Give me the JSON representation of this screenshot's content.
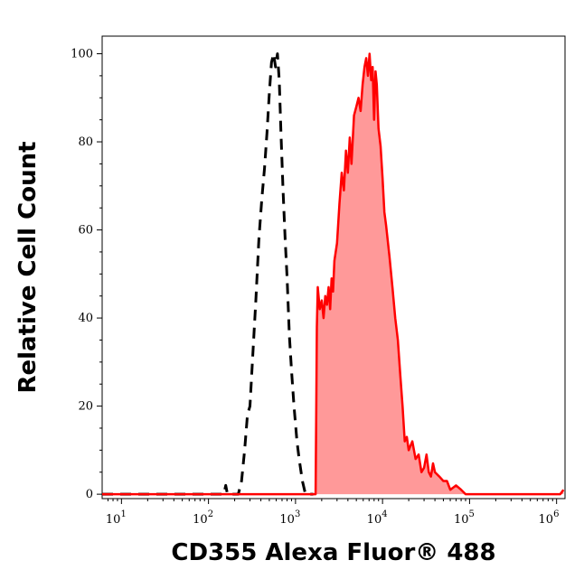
{
  "chart_data": {
    "type": "area",
    "xlabel": "CD355 Alexa Fluor® 488",
    "ylabel": "Relative Cell Count",
    "x_scale": "log",
    "xlim": [
      6,
      1250000
    ],
    "ylim": [
      -1,
      104
    ],
    "x_ticks": [
      {
        "base": "10",
        "exp": "1",
        "value": 10
      },
      {
        "base": "10",
        "exp": "2",
        "value": 100
      },
      {
        "base": "10",
        "exp": "3",
        "value": 1000
      },
      {
        "base": "10",
        "exp": "4",
        "value": 10000
      },
      {
        "base": "10",
        "exp": "5",
        "value": 100000
      },
      {
        "base": "10",
        "exp": "6",
        "value": 1000000
      }
    ],
    "y_ticks": [
      "0",
      "20",
      "40",
      "60",
      "80",
      "100"
    ],
    "y_tick_values": [
      0,
      20,
      40,
      60,
      80,
      100
    ],
    "series": [
      {
        "style": "dashed-outline",
        "color": "#000000",
        "points": [
          [
            6,
            0
          ],
          [
            150,
            0
          ],
          [
            158,
            2
          ],
          [
            165,
            0
          ],
          [
            220,
            0
          ],
          [
            240,
            3
          ],
          [
            260,
            10
          ],
          [
            280,
            18
          ],
          [
            300,
            20
          ],
          [
            320,
            30
          ],
          [
            350,
            44
          ],
          [
            380,
            58
          ],
          [
            410,
            67
          ],
          [
            440,
            74
          ],
          [
            470,
            82
          ],
          [
            500,
            91
          ],
          [
            530,
            98
          ],
          [
            560,
            100
          ],
          [
            590,
            97
          ],
          [
            620,
            100
          ],
          [
            650,
            94
          ],
          [
            680,
            82
          ],
          [
            720,
            69
          ],
          [
            760,
            58
          ],
          [
            800,
            49
          ],
          [
            850,
            36
          ],
          [
            900,
            28
          ],
          [
            960,
            20
          ],
          [
            1040,
            12
          ],
          [
            1100,
            8
          ],
          [
            1200,
            3
          ],
          [
            1300,
            0
          ],
          [
            1400,
            0
          ],
          [
            1500,
            0
          ],
          [
            1600,
            0
          ]
        ]
      },
      {
        "style": "filled",
        "color": "#ff0000",
        "fill": "#ff9999",
        "points": [
          [
            6,
            0
          ],
          [
            1650,
            0
          ],
          [
            1700,
            0
          ],
          [
            1730,
            18
          ],
          [
            1760,
            38
          ],
          [
            1800,
            47
          ],
          [
            1900,
            42
          ],
          [
            2000,
            44
          ],
          [
            2100,
            40
          ],
          [
            2200,
            45
          ],
          [
            2300,
            43
          ],
          [
            2400,
            47
          ],
          [
            2500,
            42
          ],
          [
            2600,
            49
          ],
          [
            2700,
            46
          ],
          [
            2800,
            53
          ],
          [
            3000,
            57
          ],
          [
            3200,
            66
          ],
          [
            3400,
            73
          ],
          [
            3600,
            69
          ],
          [
            3800,
            78
          ],
          [
            4000,
            73
          ],
          [
            4200,
            81
          ],
          [
            4400,
            75
          ],
          [
            4700,
            86
          ],
          [
            5000,
            88
          ],
          [
            5300,
            90
          ],
          [
            5600,
            87
          ],
          [
            5900,
            93
          ],
          [
            6200,
            97
          ],
          [
            6500,
            99
          ],
          [
            6800,
            95
          ],
          [
            7100,
            100
          ],
          [
            7400,
            94
          ],
          [
            7700,
            97
          ],
          [
            8000,
            85
          ],
          [
            8300,
            96
          ],
          [
            8600,
            93
          ],
          [
            9000,
            83
          ],
          [
            9500,
            79
          ],
          [
            10000,
            72
          ],
          [
            10500,
            64
          ],
          [
            11000,
            61
          ],
          [
            12000,
            54
          ],
          [
            13000,
            47
          ],
          [
            14000,
            40
          ],
          [
            15000,
            35
          ],
          [
            16000,
            27
          ],
          [
            17000,
            20
          ],
          [
            18000,
            12
          ],
          [
            19000,
            13
          ],
          [
            20000,
            10
          ],
          [
            22000,
            12
          ],
          [
            24000,
            8
          ],
          [
            26000,
            9
          ],
          [
            28000,
            5
          ],
          [
            30000,
            6
          ],
          [
            32000,
            9
          ],
          [
            34000,
            5
          ],
          [
            36000,
            4
          ],
          [
            38000,
            7
          ],
          [
            40000,
            5
          ],
          [
            45000,
            4
          ],
          [
            50000,
            3
          ],
          [
            55000,
            3
          ],
          [
            60000,
            1
          ],
          [
            70000,
            2
          ],
          [
            80000,
            1
          ],
          [
            90000,
            0
          ],
          [
            100000,
            0
          ],
          [
            1100000,
            0
          ],
          [
            1200000,
            1
          ]
        ]
      }
    ]
  }
}
